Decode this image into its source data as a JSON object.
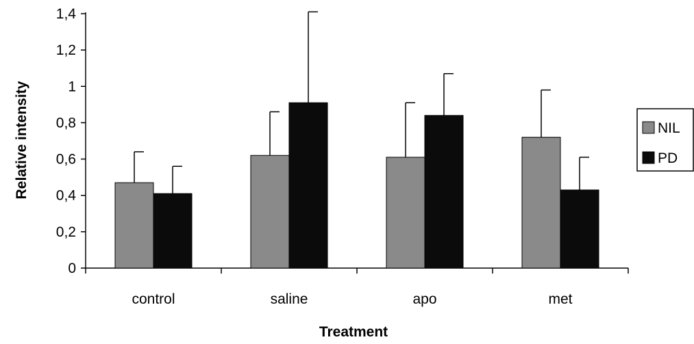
{
  "chart_data": {
    "type": "bar",
    "title": "",
    "xlabel": "Treatment",
    "ylabel": "Relative intensity",
    "categories": [
      "control",
      "saline",
      "apo",
      "met"
    ],
    "series": [
      {
        "name": "NIL",
        "values": [
          0.47,
          0.62,
          0.61,
          0.72
        ],
        "errors": [
          0.17,
          0.24,
          0.3,
          0.26
        ],
        "color": "#8a8a8a"
      },
      {
        "name": "PD",
        "values": [
          0.41,
          0.91,
          0.84,
          0.43
        ],
        "errors": [
          0.15,
          0.5,
          0.23,
          0.18
        ],
        "color": "#0b0b0b"
      }
    ],
    "ylim": [
      0,
      1.4
    ],
    "yticks": [
      {
        "value": 0,
        "label": "0"
      },
      {
        "value": 0.2,
        "label": "0,2"
      },
      {
        "value": 0.4,
        "label": "0,4"
      },
      {
        "value": 0.6,
        "label": "0,6"
      },
      {
        "value": 0.8,
        "label": "0,8"
      },
      {
        "value": 1,
        "label": "1"
      },
      {
        "value": 1.2,
        "label": "1,2"
      },
      {
        "value": 1.4,
        "label": "1,4"
      }
    ],
    "grid": false,
    "legend_position": "right"
  }
}
